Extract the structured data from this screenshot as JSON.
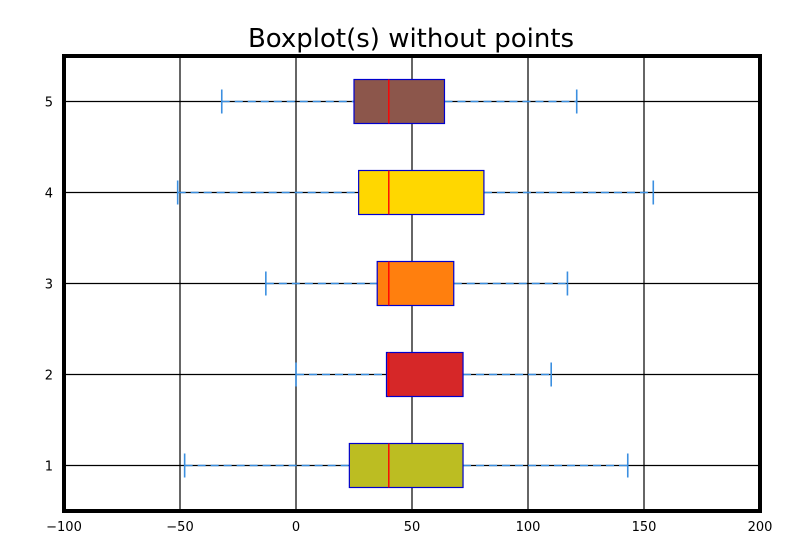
{
  "chart_data": {
    "type": "boxplot",
    "orientation": "horizontal",
    "title": "Boxplot(s) without points",
    "xlabel": "",
    "ylabel": "",
    "xlim": [
      -100,
      200
    ],
    "ylim": [
      0.5,
      5.5
    ],
    "x_ticks": [
      -100,
      -50,
      0,
      50,
      100,
      150,
      200
    ],
    "x_tick_labels": [
      "−100",
      "−50",
      "0",
      "50",
      "100",
      "150",
      "200"
    ],
    "y_ticks": [
      1,
      2,
      3,
      4,
      5
    ],
    "y_tick_labels": [
      "1",
      "2",
      "3",
      "4",
      "5"
    ],
    "grid": true,
    "median_color": "#ff0000",
    "box_edge_color": "#0000cc",
    "whisker_color": "#3b8fe0",
    "series": [
      {
        "position": 1,
        "whisker_low": -48,
        "q1": 23,
        "median": 40,
        "q3": 72,
        "whisker_high": 143,
        "color": "#bcbd22"
      },
      {
        "position": 2,
        "whisker_low": 0,
        "q1": 39,
        "median": 40,
        "q3": 72,
        "whisker_high": 110,
        "color": "#d62728"
      },
      {
        "position": 3,
        "whisker_low": -13,
        "q1": 35,
        "median": 40,
        "q3": 68,
        "whisker_high": 117,
        "color": "#ff7f0e"
      },
      {
        "position": 4,
        "whisker_low": -51,
        "q1": 27,
        "median": 40,
        "q3": 81,
        "whisker_high": 154,
        "color": "#ffd700"
      },
      {
        "position": 5,
        "whisker_low": -32,
        "q1": 25,
        "median": 40,
        "q3": 64,
        "whisker_high": 121,
        "color": "#8c564b"
      }
    ]
  }
}
